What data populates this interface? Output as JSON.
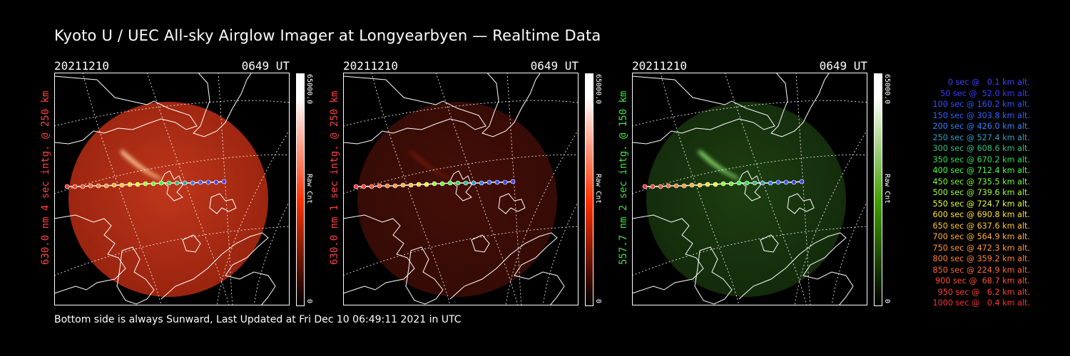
{
  "title": "Kyoto U / UEC All-sky Airglow Imager at Longyearbyen — Realtime Data",
  "panels": [
    {
      "date": "20211210",
      "time": "0649 UT",
      "side_label": "630.0 nm 4 sec intg. @ 250 km",
      "label_color": "#ff4040",
      "cbar_max": "65000.0",
      "cbar_unit": "Raw Cnt",
      "cbar_min": "0",
      "cbar_top_color": "#ffffff",
      "cbar_bottom_color": "#ff3000",
      "glow": "red-strong"
    },
    {
      "date": "20211210",
      "time": "0649 UT",
      "side_label": "630.0 nm 1 sec intg. @ 250 km",
      "label_color": "#ff4040",
      "cbar_max": "65000.0",
      "cbar_unit": "Raw Cnt",
      "cbar_min": "0",
      "cbar_top_color": "#ffffff",
      "cbar_bottom_color": "#ff3000",
      "glow": "red-weak"
    },
    {
      "date": "20211210",
      "time": "0649 UT",
      "side_label": "557.7 nm 2 sec intg. @ 150 km",
      "label_color": "#40e040",
      "cbar_max": "65000.0",
      "cbar_unit": "Raw Cnt",
      "cbar_min": "0",
      "cbar_top_color": "#ffffff",
      "cbar_bottom_color": "#40a000",
      "glow": "green"
    }
  ],
  "legend": [
    {
      "text": "   0 sec @   0.1 km alt.",
      "color": "#4040ff"
    },
    {
      "text": "  50 sec @  52.0 km alt.",
      "color": "#3a3aff"
    },
    {
      "text": " 100 sec @ 160.2 km alt.",
      "color": "#3050ff"
    },
    {
      "text": " 150 sec @ 303.8 km alt.",
      "color": "#3060ff"
    },
    {
      "text": " 200 sec @ 426.0 km alt.",
      "color": "#3080ff"
    },
    {
      "text": " 250 sec @ 527.4 km alt.",
      "color": "#30a0c0"
    },
    {
      "text": " 300 sec @ 608.6 km alt.",
      "color": "#30c080"
    },
    {
      "text": " 350 sec @ 670.2 km alt.",
      "color": "#30e050"
    },
    {
      "text": " 400 sec @ 712.4 km alt.",
      "color": "#40ff40"
    },
    {
      "text": " 450 sec @ 735.5 km alt.",
      "color": "#70ff30"
    },
    {
      "text": " 500 sec @ 739.6 km alt.",
      "color": "#a0ff30"
    },
    {
      "text": " 550 sec @ 724.7 km alt.",
      "color": "#e0ff30"
    },
    {
      "text": " 600 sec @ 690.8 km alt.",
      "color": "#ffe030"
    },
    {
      "text": " 650 sec @ 637.6 km alt.",
      "color": "#ffc830"
    },
    {
      "text": " 700 sec @ 564.9 km alt.",
      "color": "#ffb030"
    },
    {
      "text": " 750 sec @ 472.3 km alt.",
      "color": "#ff9830"
    },
    {
      "text": " 800 sec @ 359.2 km alt.",
      "color": "#ff8030"
    },
    {
      "text": " 850 sec @ 224.9 km alt.",
      "color": "#ff6830"
    },
    {
      "text": " 900 sec @  68.7 km alt.",
      "color": "#ff5030"
    },
    {
      "text": " 950 sec @   6.2 km alt.",
      "color": "#ff4030"
    },
    {
      "text": "1000 sec @   0.4 km alt.",
      "color": "#ff3030"
    }
  ],
  "footer": "Bottom side is always Sunward, Last Updated at Fri Dec 10 06:49:11 2021 in UTC"
}
